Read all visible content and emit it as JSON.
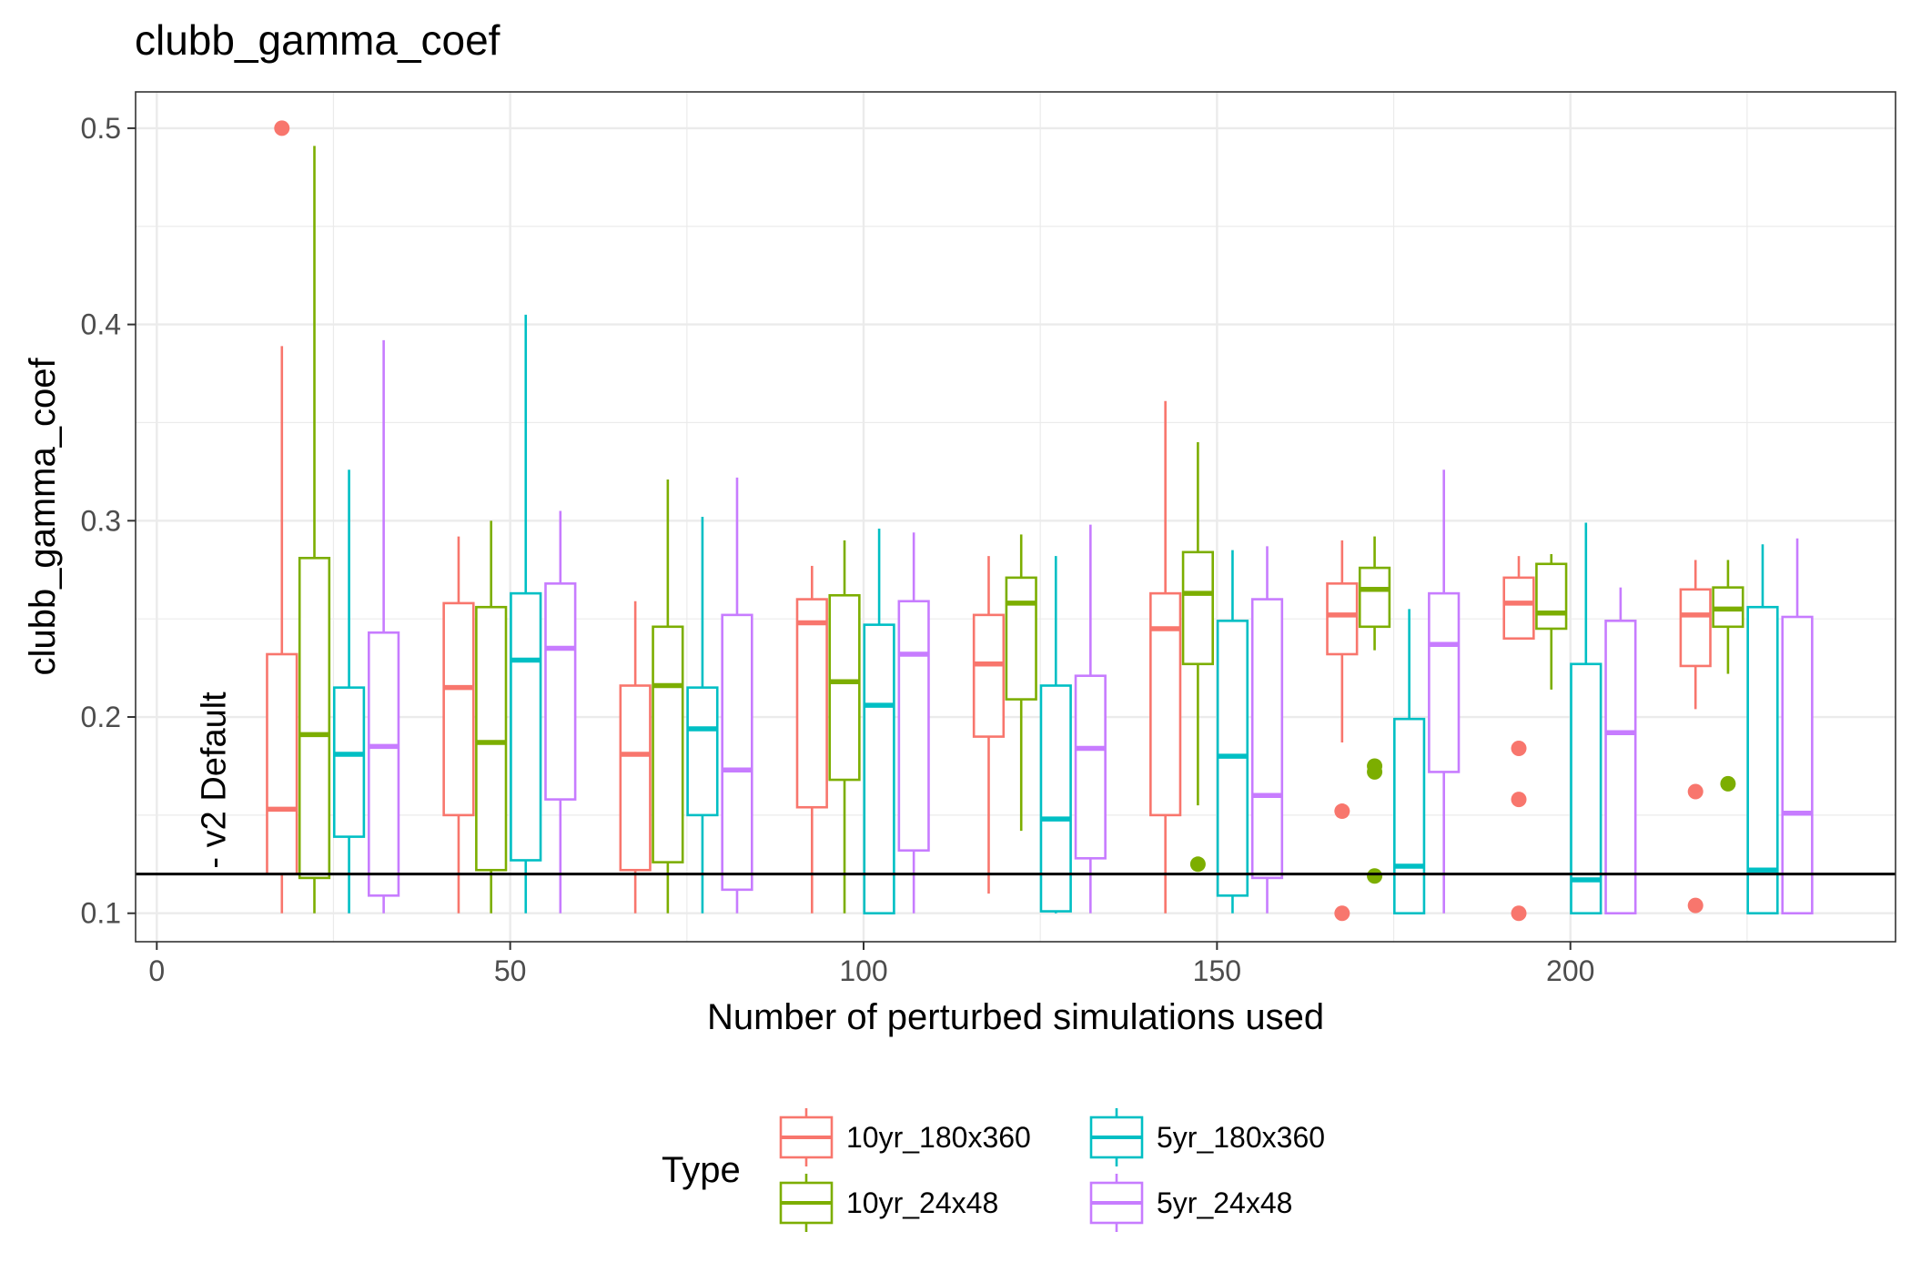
{
  "chart_data": {
    "type": "boxplot",
    "title": "clubb_gamma_coef",
    "xlabel": "Number of perturbed simulations used",
    "ylabel": "clubb_gamma_coef",
    "xlim": [
      -3,
      246
    ],
    "ylim": [
      0.0855,
      0.5185
    ],
    "x_ticks": [
      0,
      50,
      100,
      150,
      200
    ],
    "x_tick_labels": [
      "0",
      "50",
      "100",
      "150",
      "200"
    ],
    "y_ticks": [
      0.1,
      0.2,
      0.3,
      0.4,
      0.5
    ],
    "y_tick_labels": [
      "0.1",
      "0.2",
      "0.3",
      "0.4",
      "0.5"
    ],
    "grid": true,
    "legend": {
      "title": "Type",
      "position": "bottom"
    },
    "reference_line": {
      "y": 0.12,
      "label": "v2 Default",
      "label_x": 8
    },
    "groups": [
      20,
      45,
      70,
      95,
      120,
      145,
      170,
      195,
      220
    ],
    "series": [
      {
        "name": "10yr_180x360",
        "color": "#F8766D",
        "offset": -2.3,
        "boxes": [
          {
            "lower": 0.1,
            "q1": 0.12,
            "median": 0.153,
            "q3": 0.232,
            "upper": 0.389,
            "outliers": [
              0.5
            ]
          },
          {
            "lower": 0.1,
            "q1": 0.15,
            "median": 0.215,
            "q3": 0.258,
            "upper": 0.292,
            "outliers": []
          },
          {
            "lower": 0.1,
            "q1": 0.122,
            "median": 0.181,
            "q3": 0.216,
            "upper": 0.259,
            "outliers": []
          },
          {
            "lower": 0.1,
            "q1": 0.154,
            "median": 0.248,
            "q3": 0.26,
            "upper": 0.277,
            "outliers": []
          },
          {
            "lower": 0.11,
            "q1": 0.19,
            "median": 0.227,
            "q3": 0.252,
            "upper": 0.282,
            "outliers": []
          },
          {
            "lower": 0.1,
            "q1": 0.15,
            "median": 0.245,
            "q3": 0.263,
            "upper": 0.361,
            "outliers": []
          },
          {
            "lower": 0.187,
            "q1": 0.232,
            "median": 0.252,
            "q3": 0.268,
            "upper": 0.29,
            "outliers": [
              0.152,
              0.1
            ]
          },
          {
            "lower": 0.258,
            "q1": 0.24,
            "median": 0.258,
            "q3": 0.271,
            "upper": 0.282,
            "outliers": [
              0.184,
              0.158,
              0.1
            ]
          },
          {
            "lower": 0.204,
            "q1": 0.226,
            "median": 0.252,
            "q3": 0.265,
            "upper": 0.28,
            "outliers": [
              0.162,
              0.104
            ]
          }
        ]
      },
      {
        "name": "10yr_24x48",
        "color": "#7CAE00",
        "offset": 2.3,
        "boxes": [
          {
            "lower": 0.1,
            "q1": 0.118,
            "median": 0.191,
            "q3": 0.281,
            "upper": 0.491,
            "outliers": []
          },
          {
            "lower": 0.1,
            "q1": 0.122,
            "median": 0.187,
            "q3": 0.256,
            "upper": 0.3,
            "outliers": []
          },
          {
            "lower": 0.1,
            "q1": 0.126,
            "median": 0.216,
            "q3": 0.246,
            "upper": 0.321,
            "outliers": []
          },
          {
            "lower": 0.1,
            "q1": 0.168,
            "median": 0.218,
            "q3": 0.262,
            "upper": 0.29,
            "outliers": []
          },
          {
            "lower": 0.142,
            "q1": 0.209,
            "median": 0.258,
            "q3": 0.271,
            "upper": 0.293,
            "outliers": []
          },
          {
            "lower": 0.155,
            "q1": 0.227,
            "median": 0.263,
            "q3": 0.284,
            "upper": 0.34,
            "outliers": [
              0.125
            ]
          },
          {
            "lower": 0.234,
            "q1": 0.246,
            "median": 0.265,
            "q3": 0.276,
            "upper": 0.292,
            "outliers": [
              0.175,
              0.172,
              0.119
            ]
          },
          {
            "lower": 0.214,
            "q1": 0.245,
            "median": 0.253,
            "q3": 0.278,
            "upper": 0.283,
            "outliers": []
          },
          {
            "lower": 0.222,
            "q1": 0.246,
            "median": 0.255,
            "q3": 0.266,
            "upper": 0.28,
            "outliers": [
              0.166
            ]
          }
        ]
      },
      {
        "name": "5yr_180x360",
        "color": "#00BFC4",
        "offset": 7.2,
        "boxes": [
          {
            "lower": 0.1,
            "q1": 0.139,
            "median": 0.181,
            "q3": 0.215,
            "upper": 0.326,
            "outliers": []
          },
          {
            "lower": 0.1,
            "q1": 0.127,
            "median": 0.229,
            "q3": 0.263,
            "upper": 0.405,
            "outliers": []
          },
          {
            "lower": 0.1,
            "q1": 0.15,
            "median": 0.194,
            "q3": 0.215,
            "upper": 0.302,
            "outliers": []
          },
          {
            "lower": 0.1,
            "q1": 0.1,
            "median": 0.206,
            "q3": 0.247,
            "upper": 0.296,
            "outliers": []
          },
          {
            "lower": 0.1,
            "q1": 0.101,
            "median": 0.148,
            "q3": 0.216,
            "upper": 0.282,
            "outliers": []
          },
          {
            "lower": 0.1,
            "q1": 0.109,
            "median": 0.18,
            "q3": 0.249,
            "upper": 0.285,
            "outliers": []
          },
          {
            "lower": 0.1,
            "q1": 0.1,
            "median": 0.124,
            "q3": 0.199,
            "upper": 0.255,
            "outliers": []
          },
          {
            "lower": 0.1,
            "q1": 0.1,
            "median": 0.117,
            "q3": 0.227,
            "upper": 0.299,
            "outliers": []
          },
          {
            "lower": 0.1,
            "q1": 0.1,
            "median": 0.122,
            "q3": 0.256,
            "upper": 0.288,
            "outliers": []
          }
        ]
      },
      {
        "name": "5yr_24x48",
        "color": "#C77CFF",
        "offset": 12.1,
        "boxes": [
          {
            "lower": 0.1,
            "q1": 0.109,
            "median": 0.185,
            "q3": 0.243,
            "upper": 0.392,
            "outliers": []
          },
          {
            "lower": 0.1,
            "q1": 0.158,
            "median": 0.235,
            "q3": 0.268,
            "upper": 0.305,
            "outliers": []
          },
          {
            "lower": 0.1,
            "q1": 0.112,
            "median": 0.173,
            "q3": 0.252,
            "upper": 0.322,
            "outliers": []
          },
          {
            "lower": 0.1,
            "q1": 0.132,
            "median": 0.232,
            "q3": 0.259,
            "upper": 0.294,
            "outliers": []
          },
          {
            "lower": 0.1,
            "q1": 0.128,
            "median": 0.184,
            "q3": 0.221,
            "upper": 0.298,
            "outliers": []
          },
          {
            "lower": 0.1,
            "q1": 0.118,
            "median": 0.16,
            "q3": 0.26,
            "upper": 0.287,
            "outliers": []
          },
          {
            "lower": 0.1,
            "q1": 0.172,
            "median": 0.237,
            "q3": 0.263,
            "upper": 0.326,
            "outliers": []
          },
          {
            "lower": 0.1,
            "q1": 0.1,
            "median": 0.192,
            "q3": 0.249,
            "upper": 0.266,
            "outliers": []
          },
          {
            "lower": 0.1,
            "q1": 0.1,
            "median": 0.151,
            "q3": 0.251,
            "upper": 0.291,
            "outliers": []
          }
        ]
      }
    ]
  }
}
